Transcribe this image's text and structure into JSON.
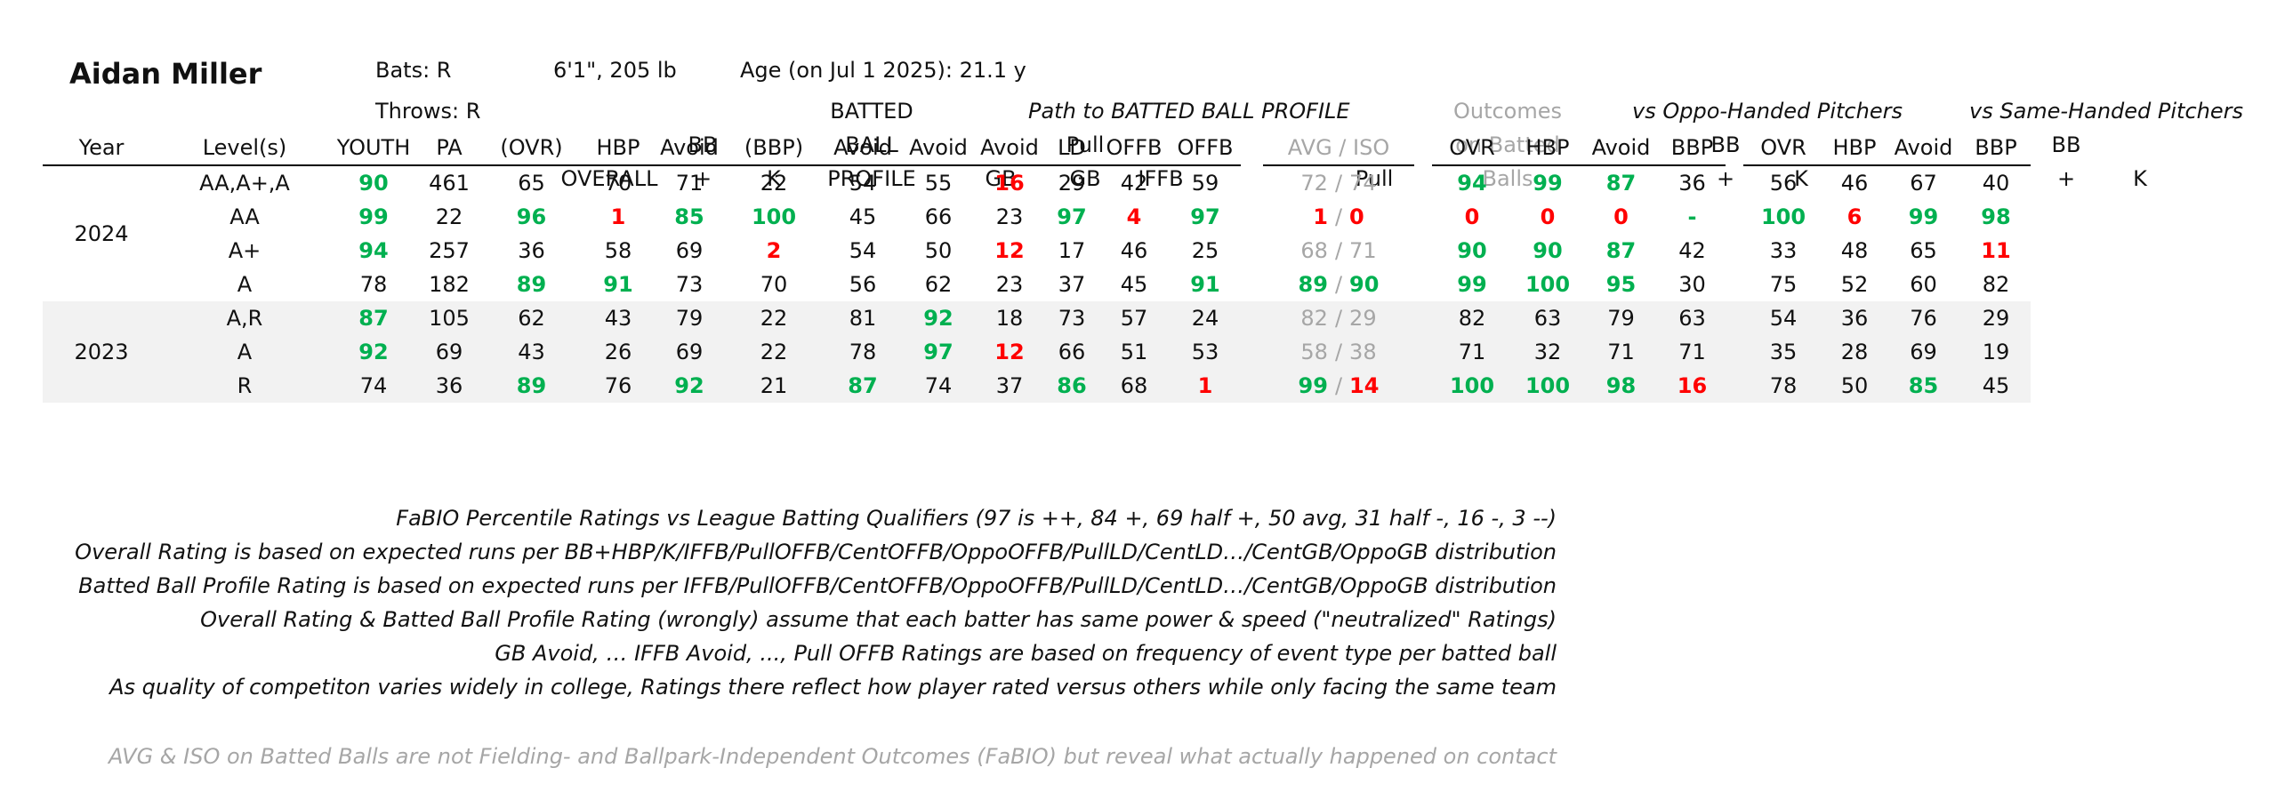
{
  "header": {
    "name": "Aidan Miller",
    "bats": "Bats: R",
    "throws": "Throws: R",
    "size": "6'1\", 205 lb",
    "age": "Age (on Jul 1 2025): 21.1 y"
  },
  "group_labels": {
    "path": "Path to BATTED BALL PROFILE",
    "oppo": "vs Oppo-Handed Pitchers",
    "same": "vs Same-Handed Pitchers"
  },
  "col_headers": {
    "year": "Year",
    "levels": "Level(s)",
    "youth": "YOUTH",
    "pa": "PA",
    "ovr": [
      "OVERALL",
      "(OVR)"
    ],
    "bbhbp": [
      "BB",
      "+",
      "HBP"
    ],
    "kavoid": [
      "K",
      "Avoid"
    ],
    "bbp": [
      "BATTED",
      "BALL",
      "PROFILE",
      "(BBP)"
    ],
    "gbavoid": [
      "GB",
      "Avoid"
    ],
    "pullgb": [
      "Pull",
      "GB",
      "Avoid"
    ],
    "iffb": [
      "IFFB",
      "Avoid"
    ],
    "ld": "LD",
    "offb": "OFFB",
    "pulloffb": [
      "Pull",
      "OFFB"
    ],
    "outcomes": [
      "Outcomes",
      "on Batted",
      "Balls"
    ],
    "avg_iso": "AVG  /  ISO",
    "split_ovr": "OVR",
    "split_hbp": [
      "BB",
      "+",
      "HBP"
    ],
    "split_kavoid": [
      "K",
      "Avoid"
    ],
    "split_bbp": "BBP"
  },
  "years": [
    {
      "year": "2024",
      "rows": [
        {
          "level": "AA,A+,A",
          "youth": "90",
          "pa": "461",
          "ovr": "65",
          "bbhbp": "70",
          "kavoid": "71",
          "bbp": "22",
          "gbavoid": "54",
          "pullgb": "55",
          "iffb": "16",
          "ld": "29",
          "offb": "42",
          "pulloffb": "59",
          "avg": "72",
          "iso": "74",
          "o_ovr": "94",
          "o_hbp": "99",
          "o_k": "87",
          "o_bbp": "36",
          "s_ovr": "56",
          "s_hbp": "46",
          "s_k": "67",
          "s_bbp": "40"
        },
        {
          "level": "AA",
          "youth": "99",
          "pa": "22",
          "ovr": "96",
          "bbhbp": "1",
          "kavoid": "85",
          "bbp": "100",
          "gbavoid": "45",
          "pullgb": "66",
          "iffb": "23",
          "ld": "97",
          "offb": "4",
          "pulloffb": "97",
          "avg": "1",
          "iso": "0",
          "o_ovr": "0",
          "o_hbp": "0",
          "o_k": "0",
          "o_bbp": "-",
          "s_ovr": "100",
          "s_hbp": "6",
          "s_k": "99",
          "s_bbp": "98"
        },
        {
          "level": "A+",
          "youth": "94",
          "pa": "257",
          "ovr": "36",
          "bbhbp": "58",
          "kavoid": "69",
          "bbp": "2",
          "gbavoid": "54",
          "pullgb": "50",
          "iffb": "12",
          "ld": "17",
          "offb": "46",
          "pulloffb": "25",
          "avg": "68",
          "iso": "71",
          "o_ovr": "90",
          "o_hbp": "90",
          "o_k": "87",
          "o_bbp": "42",
          "s_ovr": "33",
          "s_hbp": "48",
          "s_k": "65",
          "s_bbp": "11"
        },
        {
          "level": "A",
          "youth": "78",
          "pa": "182",
          "ovr": "89",
          "bbhbp": "91",
          "kavoid": "73",
          "bbp": "70",
          "gbavoid": "56",
          "pullgb": "62",
          "iffb": "23",
          "ld": "37",
          "offb": "45",
          "pulloffb": "91",
          "avg": "89",
          "iso": "90",
          "o_ovr": "99",
          "o_hbp": "100",
          "o_k": "95",
          "o_bbp": "30",
          "s_ovr": "75",
          "s_hbp": "52",
          "s_k": "60",
          "s_bbp": "82"
        }
      ]
    },
    {
      "year": "2023",
      "rows": [
        {
          "level": "A,R",
          "youth": "87",
          "pa": "105",
          "ovr": "62",
          "bbhbp": "43",
          "kavoid": "79",
          "bbp": "22",
          "gbavoid": "81",
          "pullgb": "92",
          "iffb": "18",
          "ld": "73",
          "offb": "57",
          "pulloffb": "24",
          "avg": "82",
          "iso": "29",
          "o_ovr": "82",
          "o_hbp": "63",
          "o_k": "79",
          "o_bbp": "63",
          "s_ovr": "54",
          "s_hbp": "36",
          "s_k": "76",
          "s_bbp": "29"
        },
        {
          "level": "A",
          "youth": "92",
          "pa": "69",
          "ovr": "43",
          "bbhbp": "26",
          "kavoid": "69",
          "bbp": "22",
          "gbavoid": "78",
          "pullgb": "97",
          "iffb": "12",
          "ld": "66",
          "offb": "51",
          "pulloffb": "53",
          "avg": "58",
          "iso": "38",
          "o_ovr": "71",
          "o_hbp": "32",
          "o_k": "71",
          "o_bbp": "71",
          "s_ovr": "35",
          "s_hbp": "28",
          "s_k": "69",
          "s_bbp": "19"
        },
        {
          "level": "R",
          "youth": "74",
          "pa": "36",
          "ovr": "89",
          "bbhbp": "76",
          "kavoid": "92",
          "bbp": "21",
          "gbavoid": "87",
          "pullgb": "74",
          "iffb": "37",
          "ld": "86",
          "offb": "68",
          "pulloffb": "1",
          "avg": "99",
          "iso": "14",
          "o_ovr": "100",
          "o_hbp": "100",
          "o_k": "98",
          "o_bbp": "16",
          "s_ovr": "78",
          "s_hbp": "50",
          "s_k": "85",
          "s_bbp": "45"
        }
      ]
    }
  ],
  "notes": [
    "FaBIO Percentile Ratings vs League Batting Qualifiers (97 is ++, 84 +, 69 half +, 50 avg, 31 half -, 16 -, 3 --)",
    "Overall Rating is based on expected runs per BB+HBP/K/IFFB/PullOFFB/CentOFFB/OppoOFFB/PullLD/CentLD…/CentGB/OppoGB distribution",
    "Batted Ball Profile Rating is based on expected runs per IFFB/PullOFFB/CentOFFB/OppoOFFB/PullLD/CentLD…/CentGB/OppoGB distribution",
    "Overall Rating & Batted Ball Profile Rating (wrongly) assume that each batter has same power & speed (\"neutralized\" Ratings)",
    "GB Avoid, … IFFB Avoid, ..., Pull OFFB Ratings are based on frequency of event type per batted ball",
    "As quality of competiton varies widely in college, Ratings there reflect how player rated versus others while only facing the same team"
  ],
  "footnote": "AVG & ISO on Batted Balls are not Fielding- and Ballpark-Independent Outcomes (FaBIO) but reveal what actually happened on contact",
  "colors": {
    "good": "#00b050",
    "bad": "#ff0000",
    "muted": "#a6a6a6",
    "shade": "#f2f2f2"
  }
}
